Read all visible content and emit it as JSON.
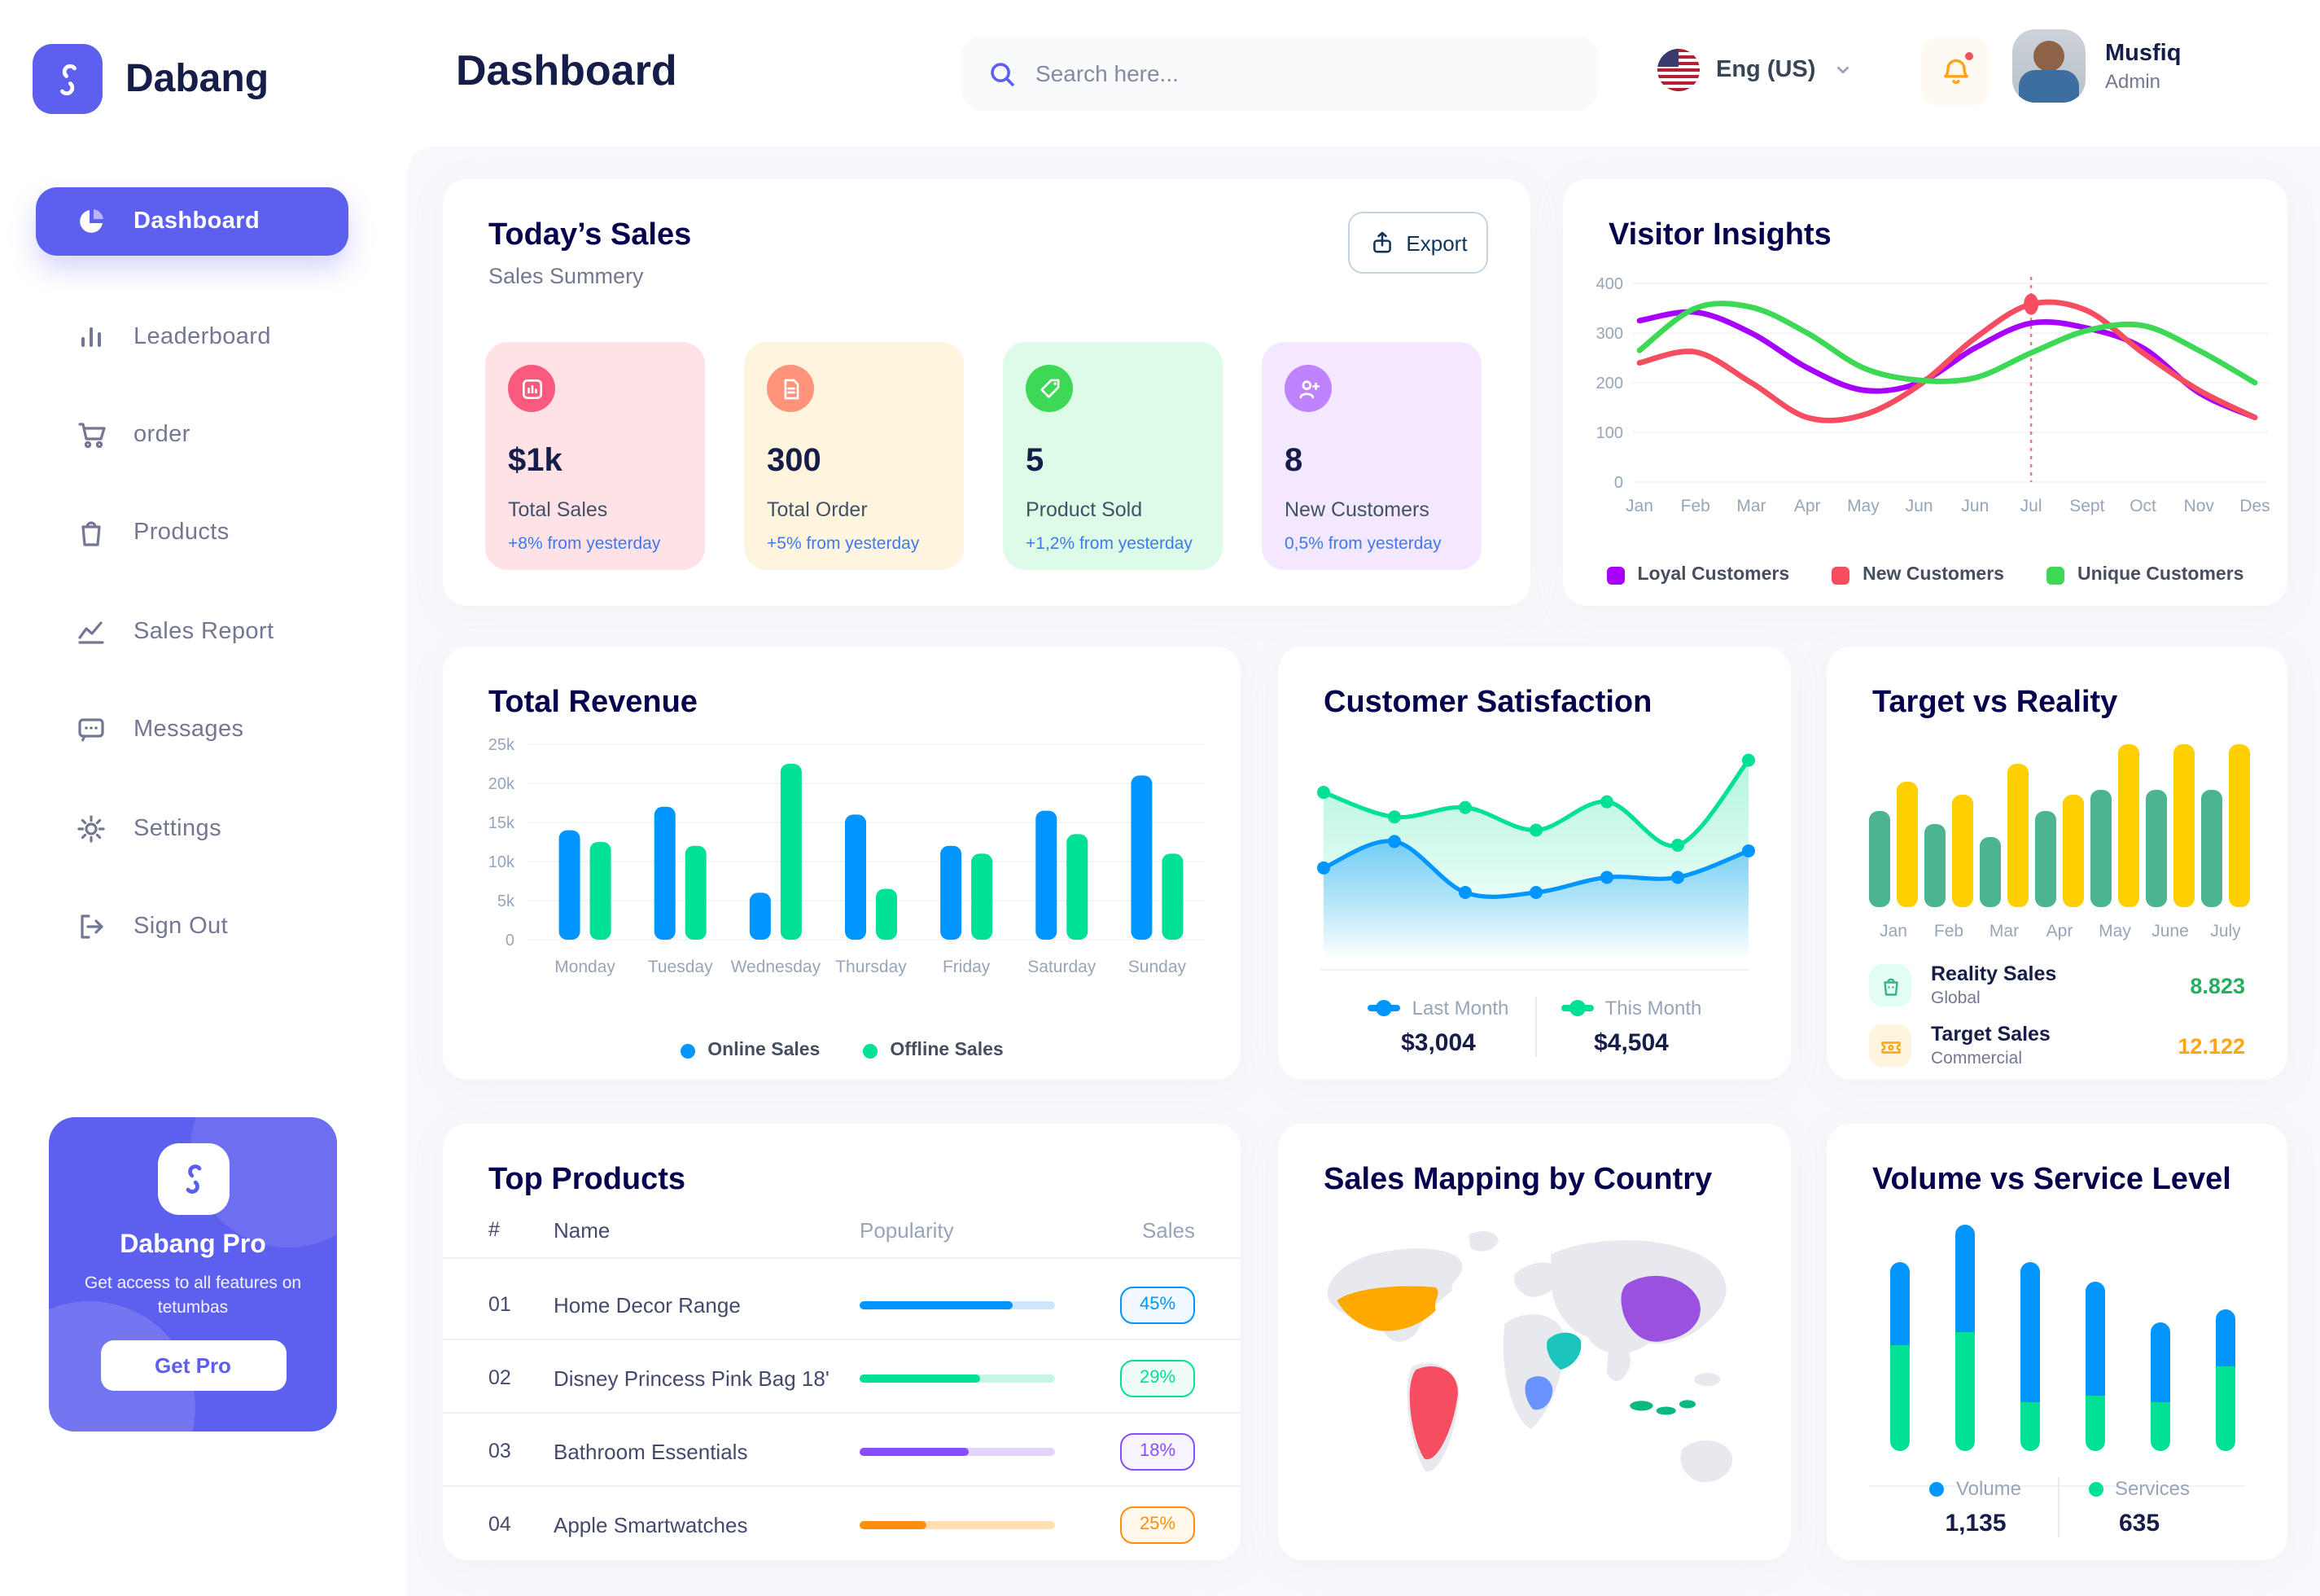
{
  "colors": {
    "primary": "#5D5FEF",
    "navy": "#151D48",
    "title_navy": "#05004E",
    "muted": "#737791",
    "axis": "#96A5B8",
    "delta_blue": "#4079ED",
    "content_bg": "#F8F9FC"
  },
  "sidebar": {
    "brand": "Dabang",
    "items": [
      {
        "label": "Dashboard",
        "icon": "pie",
        "active": true
      },
      {
        "label": "Leaderboard",
        "icon": "bars",
        "active": false
      },
      {
        "label": "order",
        "icon": "cart",
        "active": false
      },
      {
        "label": "Products",
        "icon": "bag",
        "active": false
      },
      {
        "label": "Sales Report",
        "icon": "chartline",
        "active": false
      },
      {
        "label": "Messages",
        "icon": "chat",
        "active": false
      },
      {
        "label": "Settings",
        "icon": "gear",
        "active": false
      },
      {
        "label": "Sign Out",
        "icon": "signout",
        "active": false
      }
    ],
    "pro": {
      "title": "Dabang Pro",
      "subtitle": "Get access to all features on tetumbas",
      "button": "Get Pro"
    }
  },
  "topbar": {
    "title": "Dashboard",
    "search_placeholder": "Search here...",
    "language": "Eng (US)",
    "user": {
      "name": "Musfiq",
      "role": "Admin"
    }
  },
  "today_sales": {
    "title": "Today’s Sales",
    "subtitle": "Sales Summery",
    "export_label": "Export",
    "cards": [
      {
        "value": "$1k",
        "label": "Total Sales",
        "delta": "+8% from yesterday",
        "bg": "#FFE2E5",
        "icon_bg": "#FA5A7D",
        "icon": "stat-sales"
      },
      {
        "value": "300",
        "label": "Total Order",
        "delta": "+5% from yesterday",
        "bg": "#FFF4DE",
        "icon_bg": "#FF947A",
        "icon": "stat-order"
      },
      {
        "value": "5",
        "label": "Product Sold",
        "delta": "+1,2% from yesterday",
        "bg": "#DCFCE7",
        "icon_bg": "#3CD856",
        "icon": "stat-tag"
      },
      {
        "value": "8",
        "label": "New Customers",
        "delta": "0,5% from yesterday",
        "bg": "#F3E8FF",
        "icon_bg": "#BF83FF",
        "icon": "stat-user"
      }
    ]
  },
  "chart_data": [
    {
      "id": "visitor_insights",
      "type": "line",
      "title": "Visitor Insights",
      "categories": [
        "Jan",
        "Feb",
        "Mar",
        "Apr",
        "May",
        "Jun",
        "Jun",
        "Jul",
        "Sept",
        "Oct",
        "Nov",
        "Des"
      ],
      "ylim": [
        0,
        400
      ],
      "yticks": [
        0,
        100,
        200,
        300,
        400
      ],
      "grid": true,
      "legend_position": "bottom",
      "marker": {
        "series": "New Customers",
        "index": 7
      },
      "series": [
        {
          "name": "Loyal Customers",
          "color": "#A700FF",
          "values": [
            325,
            342,
            300,
            230,
            185,
            200,
            270,
            320,
            310,
            270,
            180,
            130
          ]
        },
        {
          "name": "New Customers",
          "color": "#F64E60",
          "values": [
            240,
            262,
            200,
            130,
            135,
            195,
            290,
            358,
            345,
            260,
            185,
            130
          ]
        },
        {
          "name": "Unique Customers",
          "color": "#3CD856",
          "values": [
            265,
            350,
            352,
            300,
            230,
            205,
            210,
            260,
            305,
            315,
            265,
            200
          ]
        }
      ]
    },
    {
      "id": "total_revenue",
      "type": "bar",
      "title": "Total Revenue",
      "categories": [
        "Monday",
        "Tuesday",
        "Wednesday",
        "Thursday",
        "Friday",
        "Saturday",
        "Sunday"
      ],
      "ylim": [
        0,
        25
      ],
      "yticks": [
        0,
        5,
        10,
        15,
        20,
        25
      ],
      "ytick_labels": [
        "0",
        "5k",
        "10k",
        "15k",
        "20k",
        "25k"
      ],
      "grid": true,
      "legend_position": "bottom",
      "series": [
        {
          "name": "Online Sales",
          "color": "#0095FF",
          "values": [
            14,
            17,
            6,
            16,
            12,
            16.5,
            21
          ]
        },
        {
          "name": "Offline Sales",
          "color": "#00E096",
          "values": [
            12.5,
            12,
            22.5,
            6.5,
            11,
            13.5,
            11
          ]
        }
      ]
    },
    {
      "id": "customer_satisfaction",
      "type": "area",
      "title": "Customer Satisfaction",
      "ylim": [
        0,
        100
      ],
      "legend_position": "bottom",
      "series": [
        {
          "name": "Last Month",
          "color": "#0095FF",
          "total": "$3,004",
          "values": [
            38,
            52,
            25,
            25,
            33,
            33,
            47
          ]
        },
        {
          "name": "This Month",
          "color": "#00E096",
          "total": "$4,504",
          "values": [
            78,
            65,
            70,
            58,
            73,
            50,
            95
          ]
        }
      ]
    },
    {
      "id": "target_vs_reality",
      "type": "bar",
      "title": "Target vs Reality",
      "categories": [
        "Jan",
        "Feb",
        "Mar",
        "Apr",
        "May",
        "June",
        "July"
      ],
      "ylim": [
        0,
        100
      ],
      "series": [
        {
          "name": "Reality Sales",
          "subtitle": "Global",
          "color": "#4AB58E",
          "value_label": "8.823",
          "value_color": "#27AE60",
          "icon_bg": "#E2FFF3",
          "icon": "legend-bag",
          "values": [
            59,
            51,
            43,
            59,
            72,
            72,
            72
          ]
        },
        {
          "name": "Target Sales",
          "subtitle": "Commercial",
          "color": "#FFCF00",
          "value_label": "12.122",
          "value_color": "#FFA412",
          "icon_bg": "#FFF4DE",
          "icon": "legend-ticket",
          "values": [
            77,
            69,
            88,
            69,
            100,
            100,
            100
          ]
        }
      ]
    },
    {
      "id": "volume_service_level",
      "type": "stacked-bar",
      "title": "Volume vs Service Level",
      "ylim": [
        0,
        139
      ],
      "legend_position": "bottom",
      "series": [
        {
          "name": "Volume",
          "color": "#0095FF",
          "total": "1,135",
          "values": [
            51,
            66,
            86,
            70,
            49,
            35
          ]
        },
        {
          "name": "Services",
          "color": "#00E096",
          "total": "635",
          "values": [
            65,
            73,
            30,
            34,
            30,
            52
          ]
        }
      ]
    }
  ],
  "top_products": {
    "title": "Top Products",
    "columns": [
      "#",
      "Name",
      "Popularity",
      "Sales"
    ],
    "rows": [
      {
        "id": "01",
        "name": "Home Decor Range",
        "popularity": 78,
        "sales": "45%",
        "color": "#0095FF",
        "track": "#CDE7FF",
        "badge_bg": "#F0F9FF"
      },
      {
        "id": "02",
        "name": "Disney Princess Pink Bag 18'",
        "popularity": 62,
        "sales": "29%",
        "color": "#00E096",
        "track": "#C6F5E5",
        "badge_bg": "#F0FDF7"
      },
      {
        "id": "03",
        "name": "Bathroom Essentials",
        "popularity": 56,
        "sales": "18%",
        "color": "#884DFF",
        "track": "#E3D4FF",
        "badge_bg": "#F8F4FF"
      },
      {
        "id": "04",
        "name": "Apple Smartwatches",
        "popularity": 34,
        "sales": "25%",
        "color": "#FF8F0D",
        "track": "#FFDFB0",
        "badge_bg": "#FFF8EC"
      }
    ]
  },
  "sales_map": {
    "title": "Sales Mapping by Country",
    "countries": [
      {
        "key": "usa",
        "name": "United States",
        "color": "#FFA800"
      },
      {
        "key": "brazil",
        "name": "Brazil",
        "color": "#F64E60"
      },
      {
        "key": "china",
        "name": "China",
        "color": "#9B51E0"
      },
      {
        "key": "saudi",
        "name": "Saudi Arabia",
        "color": "#1BC5BD"
      },
      {
        "key": "congo",
        "name": "DR Congo",
        "color": "#6993FF"
      },
      {
        "key": "indonesia",
        "name": "Indonesia",
        "color": "#0BB783"
      }
    ]
  }
}
